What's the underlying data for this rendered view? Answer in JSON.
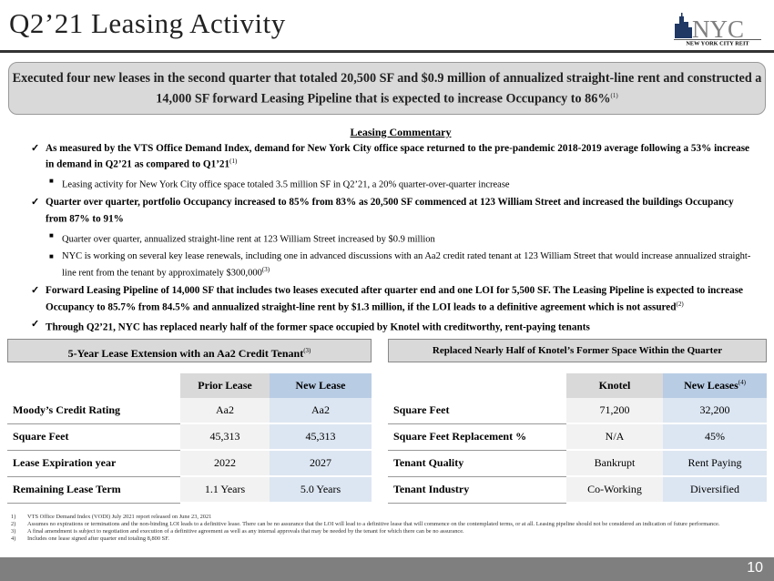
{
  "title": "Q2’21 Leasing Activity",
  "logo": {
    "text": "NYC",
    "subtext": "NEW YORK CITY REIT"
  },
  "summary": {
    "text": "Executed four new leases in the second quarter that totaled 20,500 SF and $0.9 million of annualized straight-line rent and constructed a 14,000 SF forward Leasing Pipeline that is expected to increase Occupancy to 86%",
    "sup": "(1)"
  },
  "commentary": {
    "heading": "Leasing Commentary",
    "items": [
      {
        "level": 1,
        "text": "As measured by the VTS Office Demand Index, demand for New York City office space returned to the pre-pandemic 2018-2019 average following a 53% increase in demand in Q2’21 as compared to Q1’21",
        "sup": "(1)"
      },
      {
        "level": 2,
        "text": "Leasing activity for New York City office space totaled 3.5 million SF in Q2’21, a 20% quarter-over-quarter increase",
        "sup": ""
      },
      {
        "level": 1,
        "text": "Quarter over quarter, portfolio Occupancy increased to 85% from 83% as 20,500 SF commenced at 123 William Street and increased the buildings Occupancy from 87% to 91%",
        "sup": ""
      },
      {
        "level": 2,
        "text": "Quarter over quarter, annualized straight-line rent at 123 William Street increased by $0.9 million",
        "sup": ""
      },
      {
        "level": 2,
        "text": "NYC is working on several key lease renewals, including one in advanced discussions with an Aa2 credit rated tenant at 123 William Street that would increase annualized straight-line rent from the tenant by approximately $300,000",
        "sup": "(3)"
      },
      {
        "level": 1,
        "text": "Forward Leasing Pipeline of 14,000 SF that includes two leases executed after quarter end and one LOI for 5,500 SF. The Leasing Pipeline is expected to increase Occupancy to 85.7% from 84.5% and annualized straight-line rent by $1.3 million, if the LOI leads to a definitive agreement which is not assured",
        "sup": "(2)"
      },
      {
        "level": 1,
        "text": "Through Q2’21, NYC has replaced nearly half of the former space occupied by Knotel with creditworthy, rent-paying tenants",
        "sup": ""
      }
    ]
  },
  "left_table": {
    "title": "5-Year Lease Extension with an Aa2 Credit Tenant",
    "title_sup": "(3)",
    "columns": [
      "Prior Lease",
      "New Lease"
    ],
    "rows": [
      [
        "Moody’s Credit Rating",
        "Aa2",
        "Aa2"
      ],
      [
        "Square Feet",
        "45,313",
        "45,313"
      ],
      [
        "Lease Expiration year",
        "2022",
        "2027"
      ],
      [
        "Remaining Lease Term",
        "1.1 Years",
        "5.0 Years"
      ]
    ]
  },
  "right_table": {
    "title": "Replaced Nearly Half of Knotel’s Former Space Within the Quarter",
    "columns": [
      "Knotel",
      "New Leases"
    ],
    "col2_sup": "(4)",
    "rows": [
      [
        "Square Feet",
        "71,200",
        "32,200"
      ],
      [
        "Square Feet Replacement %",
        "N/A",
        "45%"
      ],
      [
        "Tenant Quality",
        "Bankrupt",
        "Rent Paying"
      ],
      [
        "Tenant Industry",
        "Co-Working",
        "Diversified"
      ]
    ]
  },
  "footnotes": [
    {
      "n": "1)",
      "text": "VTS Office Demand Index (VODI) July 2021 report released on June 23, 2021"
    },
    {
      "n": "2)",
      "text": "Assumes no expirations or terminations and the non-binding LOI leads to a definitive lease. There can be no assurance that the LOI will lead to a definitive lease that will commence on the contemplated terms, or at all. Leasing pipeline should not be considered an indication of future performance."
    },
    {
      "n": "3)",
      "text": "A final amendment is subject to negotiation and execution of a definitive agreement as well as any internal approvals that may be needed by the tenant for which there can be no assurance."
    },
    {
      "n": "4)",
      "text": "Includes one lease signed after quarter end totaling 8,800 SF."
    }
  ],
  "page_number": "10",
  "colors": {
    "new_col": "#dce6f2",
    "header_gray": "#d9d9d9",
    "footer_bar": "#7f7f7f",
    "logo_blue": "#1f3864"
  }
}
